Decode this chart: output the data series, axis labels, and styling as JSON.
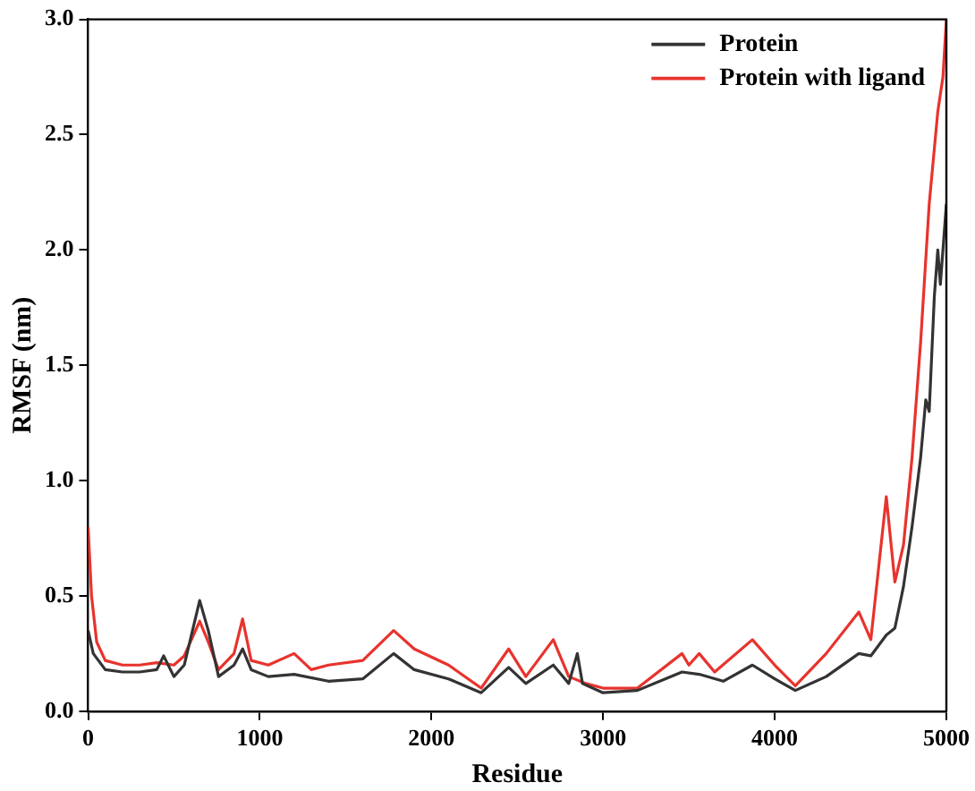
{
  "chart_data": {
    "type": "line",
    "xlabel": "Residue",
    "ylabel": "RMSF (nm)",
    "xlim": [
      0,
      5000
    ],
    "ylim": [
      0,
      3
    ],
    "xticks": [
      0,
      1000,
      2000,
      3000,
      4000,
      5000
    ],
    "yticks": [
      {
        "value": 0,
        "label": "0.0"
      },
      {
        "value": 0.5,
        "label": "0.5"
      },
      {
        "value": 1,
        "label": "1.0"
      },
      {
        "value": 1.5,
        "label": "1.5"
      },
      {
        "value": 2,
        "label": "2.0"
      },
      {
        "value": 2.5,
        "label": "2.5"
      },
      {
        "value": 3,
        "label": "3.0"
      }
    ],
    "legend": "top right",
    "grid": false,
    "marker": "none",
    "line_style": "solid",
    "series": [
      {
        "name": "Protein",
        "color": "#333333",
        "x": [
          0,
          30,
          100,
          200,
          300,
          400,
          440,
          500,
          560,
          650,
          700,
          760,
          850,
          900,
          950,
          1050,
          1200,
          1400,
          1600,
          1780,
          1900,
          2100,
          2290,
          2450,
          2550,
          2710,
          2800,
          2850,
          2880,
          3000,
          3200,
          3460,
          3560,
          3700,
          3870,
          4000,
          4120,
          4300,
          4490,
          4560,
          4650,
          4700,
          4750,
          4800,
          4850,
          4880,
          4900,
          4930,
          4950,
          4965,
          4990,
          5000
        ],
        "values": [
          0.35,
          0.25,
          0.18,
          0.17,
          0.17,
          0.18,
          0.24,
          0.15,
          0.2,
          0.48,
          0.35,
          0.15,
          0.2,
          0.27,
          0.18,
          0.15,
          0.16,
          0.13,
          0.14,
          0.25,
          0.18,
          0.14,
          0.08,
          0.19,
          0.12,
          0.2,
          0.12,
          0.25,
          0.12,
          0.08,
          0.09,
          0.17,
          0.16,
          0.13,
          0.2,
          0.14,
          0.09,
          0.15,
          0.25,
          0.24,
          0.33,
          0.36,
          0.54,
          0.8,
          1.1,
          1.35,
          1.3,
          1.8,
          2.0,
          1.85,
          2.1,
          2.2
        ]
      },
      {
        "name": "Protein with ligand",
        "color": "#e8332d",
        "x": [
          0,
          20,
          50,
          100,
          200,
          300,
          400,
          500,
          560,
          650,
          700,
          760,
          850,
          900,
          950,
          1050,
          1200,
          1300,
          1400,
          1600,
          1780,
          1900,
          2100,
          2290,
          2450,
          2550,
          2710,
          2800,
          2900,
          3000,
          3200,
          3460,
          3500,
          3560,
          3650,
          3870,
          4000,
          4120,
          4300,
          4490,
          4560,
          4650,
          4700,
          4750,
          4800,
          4850,
          4900,
          4950,
          4980,
          5000
        ],
        "values": [
          0.8,
          0.5,
          0.3,
          0.22,
          0.2,
          0.2,
          0.21,
          0.2,
          0.24,
          0.39,
          0.3,
          0.18,
          0.25,
          0.4,
          0.22,
          0.2,
          0.25,
          0.18,
          0.2,
          0.22,
          0.35,
          0.27,
          0.2,
          0.1,
          0.27,
          0.15,
          0.31,
          0.15,
          0.12,
          0.1,
          0.1,
          0.25,
          0.2,
          0.25,
          0.17,
          0.31,
          0.2,
          0.11,
          0.25,
          0.43,
          0.31,
          0.93,
          0.56,
          0.72,
          1.1,
          1.6,
          2.2,
          2.6,
          2.75,
          3.0
        ]
      }
    ]
  }
}
